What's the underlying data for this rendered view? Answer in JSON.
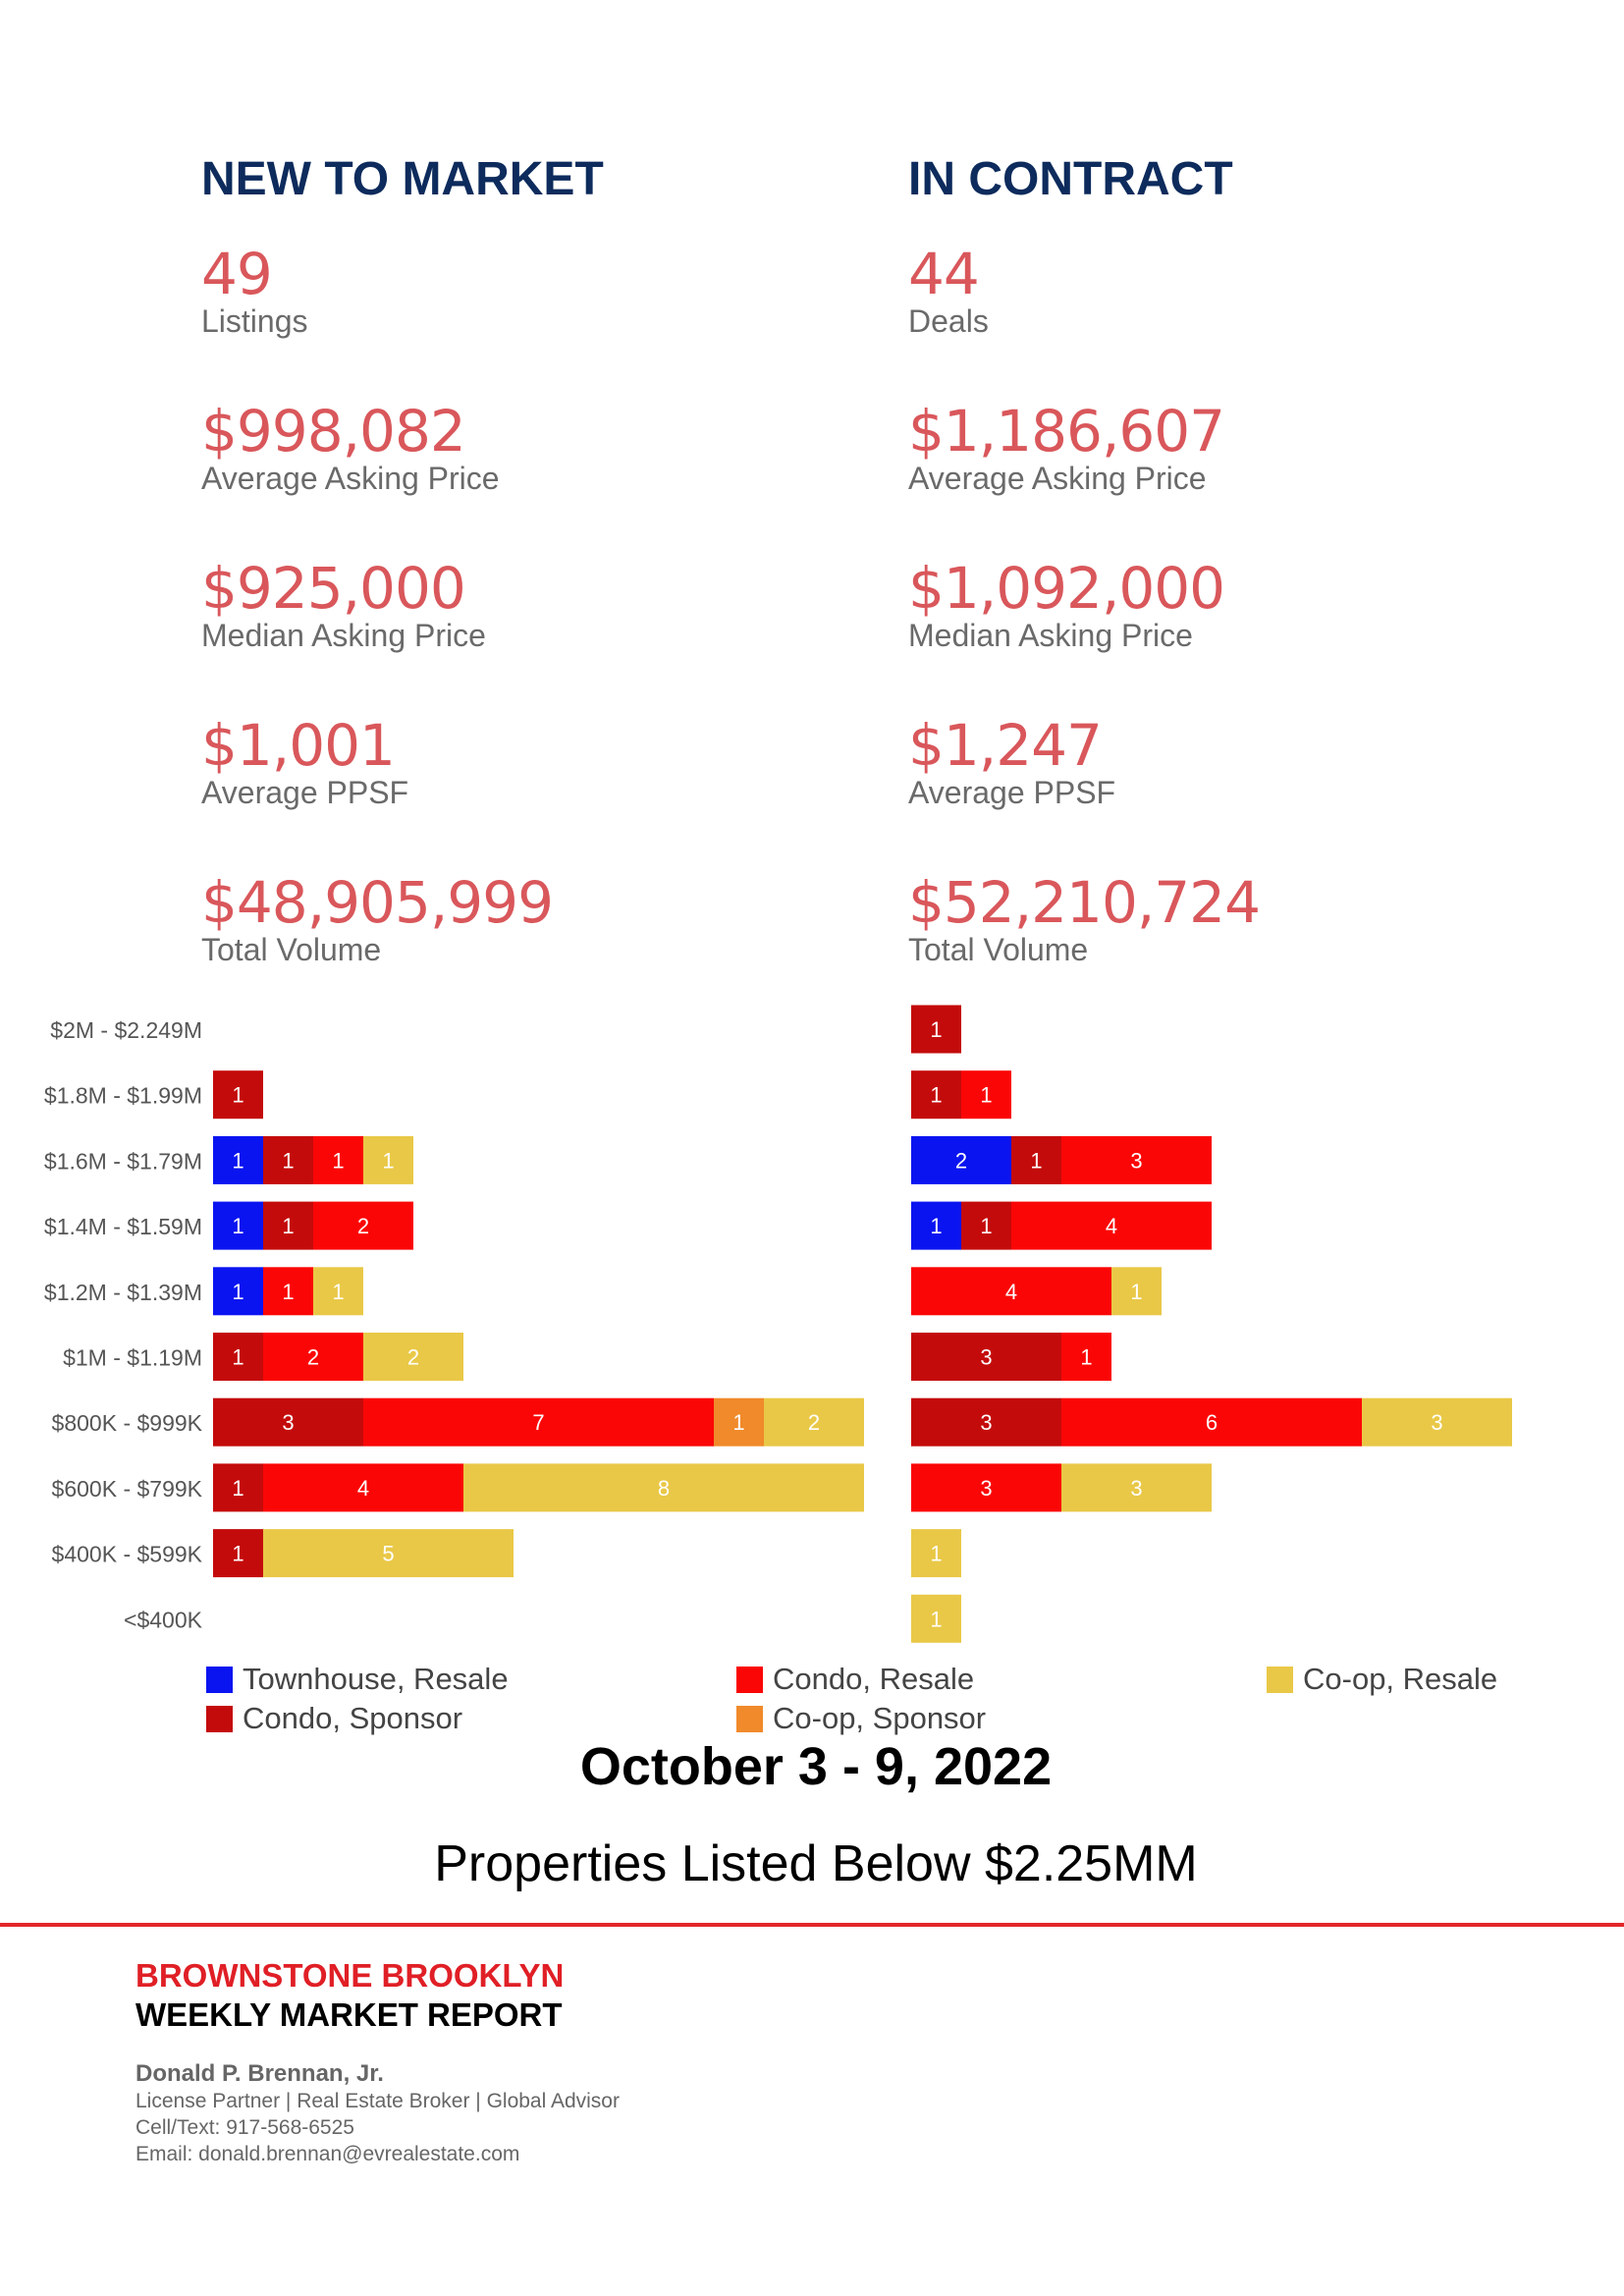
{
  "new_to_market": {
    "title": "NEW TO MARKET",
    "stats": [
      {
        "value": "49",
        "label": "Listings"
      },
      {
        "value": "$998,082",
        "label": "Average Asking Price"
      },
      {
        "value": "$925,000",
        "label": "Median Asking Price"
      },
      {
        "value": "$1,001",
        "label": "Average PPSF"
      },
      {
        "value": "$48,905,999",
        "label": "Total Volume"
      }
    ]
  },
  "in_contract": {
    "title": "IN CONTRACT",
    "stats": [
      {
        "value": "44",
        "label": "Deals"
      },
      {
        "value": "$1,186,607",
        "label": "Average Asking Price"
      },
      {
        "value": "$1,092,000",
        "label": "Median Asking Price"
      },
      {
        "value": "$1,247",
        "label": "Average PPSF"
      },
      {
        "value": "$52,210,724",
        "label": "Total Volume"
      }
    ]
  },
  "chart_data": [
    {
      "type": "bar",
      "orientation": "horizontal",
      "stacked": true,
      "title": "",
      "categories": [
        "$2M - $2.249M",
        "$1.8M - $1.99M",
        "$1.6M - $1.79M",
        "$1.4M - $1.59M",
        "$1.2M - $1.39M",
        "$1M - $1.19M",
        "$800K - $999K",
        "$600K - $799K",
        "$400K - $599K",
        "<$400K"
      ],
      "series": [
        {
          "name": "Townhouse, Resale",
          "values": [
            0,
            0,
            1,
            1,
            1,
            0,
            0,
            0,
            0,
            0
          ]
        },
        {
          "name": "Condo, Sponsor",
          "values": [
            0,
            1,
            1,
            1,
            0,
            1,
            3,
            1,
            1,
            0
          ]
        },
        {
          "name": "Condo, Resale",
          "values": [
            0,
            0,
            1,
            2,
            1,
            2,
            7,
            4,
            0,
            0
          ]
        },
        {
          "name": "Co-op, Sponsor",
          "values": [
            0,
            0,
            0,
            0,
            0,
            0,
            1,
            0,
            0,
            0
          ]
        },
        {
          "name": "Co-op, Resale",
          "values": [
            0,
            0,
            1,
            0,
            1,
            2,
            2,
            8,
            5,
            0
          ]
        }
      ]
    },
    {
      "type": "bar",
      "orientation": "horizontal",
      "stacked": true,
      "title": "",
      "categories": [
        "$2M - $2.249M",
        "$1.8M - $1.99M",
        "$1.6M - $1.79M",
        "$1.4M - $1.59M",
        "$1.2M - $1.39M",
        "$1M - $1.19M",
        "$800K - $999K",
        "$600K - $799K",
        "$400K - $599K",
        "<$400K"
      ],
      "series": [
        {
          "name": "Townhouse, Resale",
          "values": [
            0,
            0,
            2,
            1,
            0,
            0,
            0,
            0,
            0,
            0
          ]
        },
        {
          "name": "Condo, Sponsor",
          "values": [
            1,
            1,
            1,
            1,
            0,
            3,
            3,
            0,
            0,
            0
          ]
        },
        {
          "name": "Condo, Resale",
          "values": [
            0,
            1,
            3,
            4,
            4,
            1,
            6,
            3,
            0,
            0
          ]
        },
        {
          "name": "Co-op, Sponsor",
          "values": [
            0,
            0,
            0,
            0,
            0,
            0,
            0,
            0,
            0,
            0
          ]
        },
        {
          "name": "Co-op, Resale",
          "values": [
            0,
            0,
            0,
            0,
            1,
            0,
            3,
            3,
            1,
            1
          ]
        }
      ]
    }
  ],
  "legend": [
    {
      "label": "Townhouse, Resale",
      "color": "#0a14f0"
    },
    {
      "label": "Condo, Resale",
      "color": "#fb0606"
    },
    {
      "label": "Co-op, Resale",
      "color": "#e9c847"
    },
    {
      "label": "Condo, Sponsor",
      "color": "#c40b0b"
    },
    {
      "label": "Co-op, Sponsor",
      "color": "#f08a2a"
    }
  ],
  "report": {
    "week": "October 3 - 9, 2022",
    "subtitle": "Properties Listed Below $2.25MM"
  },
  "footer": {
    "brand_line1": "BROWNSTONE BROOKLYN",
    "brand_line2": "WEEKLY MARKET REPORT",
    "agent_name": "Donald P. Brennan, Jr.",
    "agent_titles": "License Partner | Real Estate Broker | Global Advisor",
    "agent_phone": "Cell/Text: 917-568-6525",
    "agent_email": "Email: donald.brennan@evrealestate.com"
  }
}
